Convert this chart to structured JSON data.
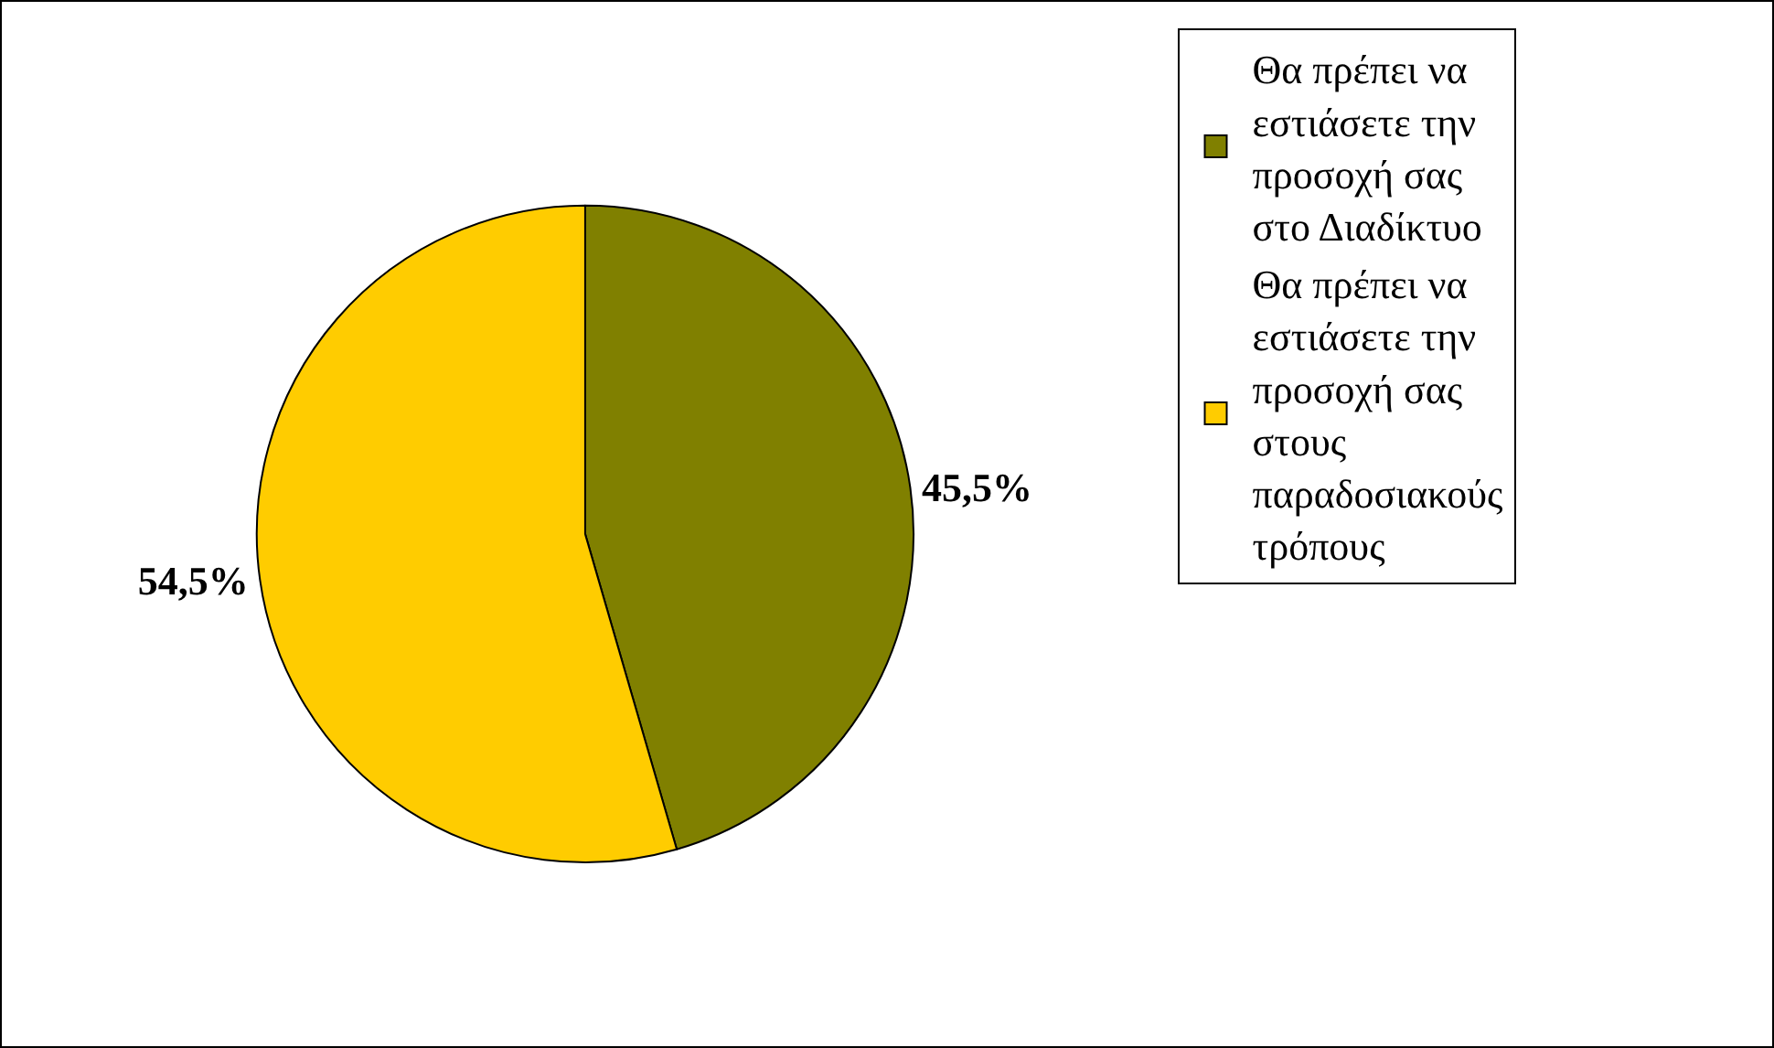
{
  "chart_data": {
    "type": "pie",
    "categories": [
      "Θα πρέπει να εστιάσετε την προσοχή σας στο Διαδίκτυο",
      "Θα πρέπει να εστιάσετε την προσοχή σας στους παραδοσιακούς τρόπους"
    ],
    "values": [
      45.5,
      54.5
    ],
    "colors": [
      "#808000",
      "#ffcc00"
    ],
    "value_labels": [
      "45,5%",
      "54,5%"
    ],
    "legend": "right"
  }
}
